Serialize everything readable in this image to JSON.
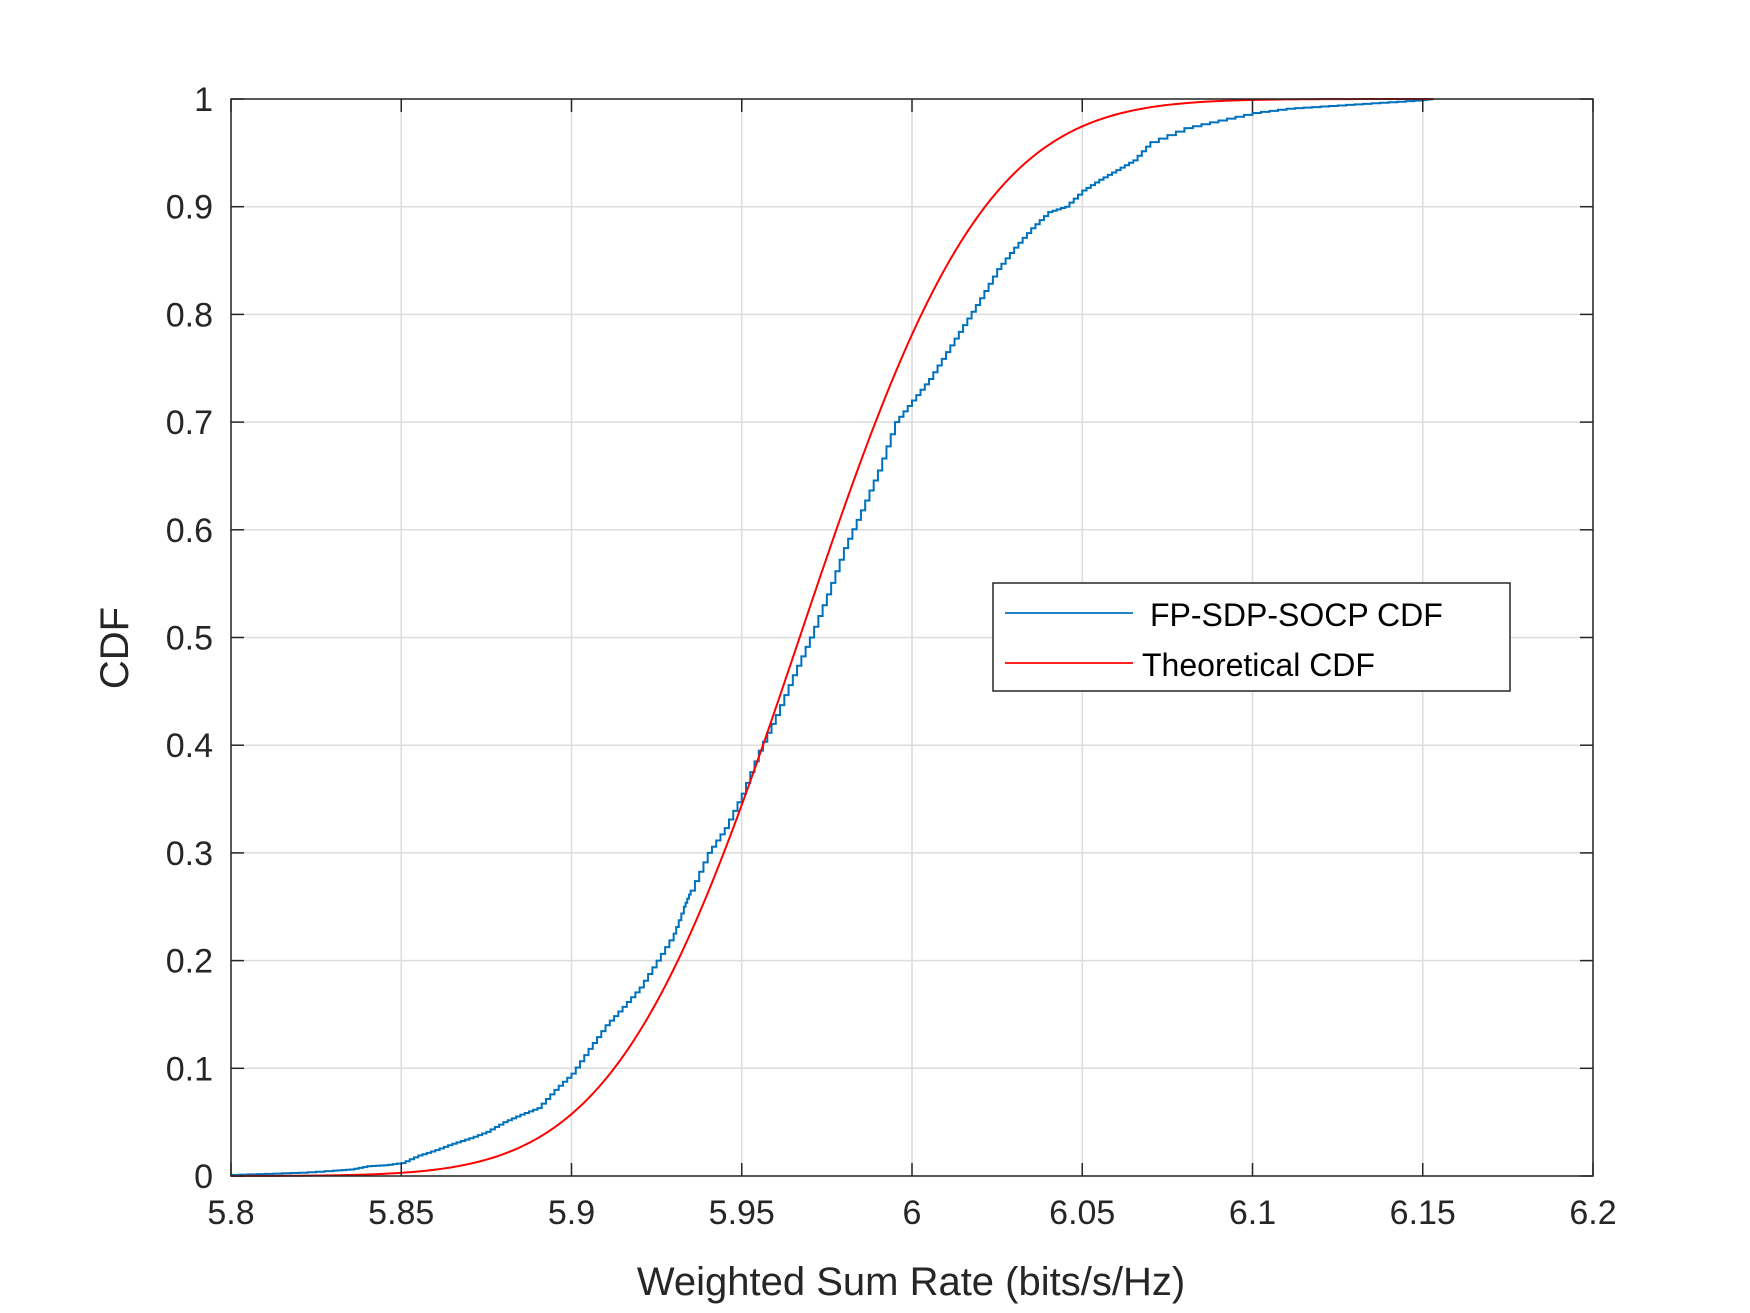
{
  "chart_data": {
    "type": "line",
    "title": "",
    "xlabel": "Weighted Sum Rate (bits/s/Hz)",
    "ylabel": "CDF",
    "xlim": [
      5.8,
      6.2
    ],
    "ylim": [
      0,
      1
    ],
    "xticks": [
      5.8,
      5.85,
      5.9,
      5.95,
      6.0,
      6.05,
      6.1,
      6.15,
      6.2
    ],
    "xtick_labels": [
      "5.8",
      "5.85",
      "5.9",
      "5.95",
      "6",
      "6.05",
      "6.1",
      "6.15",
      "6.2"
    ],
    "yticks": [
      0,
      0.1,
      0.2,
      0.3,
      0.4,
      0.5,
      0.6,
      0.7,
      0.8,
      0.9,
      1.0
    ],
    "ytick_labels": [
      "0",
      "0.1",
      "0.2",
      "0.3",
      "0.4",
      "0.5",
      "0.6",
      "0.7",
      "0.8",
      "0.9",
      "1"
    ],
    "grid": true,
    "legend_position": "center-right",
    "series": [
      {
        "name": "FP-SDP-SOCP CDF",
        "color": "#0072BD",
        "style": "empirical-stairs",
        "x": [
          5.8,
          5.81,
          5.82,
          5.83,
          5.835,
          5.84,
          5.845,
          5.85,
          5.855,
          5.86,
          5.865,
          5.87,
          5.875,
          5.88,
          5.885,
          5.89,
          5.895,
          5.9,
          5.905,
          5.91,
          5.915,
          5.92,
          5.925,
          5.93,
          5.933,
          5.935,
          5.94,
          5.945,
          5.95,
          5.955,
          5.96,
          5.965,
          5.97,
          5.975,
          5.98,
          5.985,
          5.99,
          5.995,
          6.0,
          6.005,
          6.01,
          6.015,
          6.02,
          6.025,
          6.03,
          6.035,
          6.04,
          6.045,
          6.05,
          6.055,
          6.06,
          6.065,
          6.07,
          6.08,
          6.09,
          6.1,
          6.11,
          6.12,
          6.13,
          6.14,
          6.15,
          6.153
        ],
        "y": [
          0.001,
          0.002,
          0.003,
          0.005,
          0.006,
          0.009,
          0.01,
          0.012,
          0.019,
          0.024,
          0.03,
          0.035,
          0.041,
          0.05,
          0.057,
          0.063,
          0.08,
          0.095,
          0.118,
          0.14,
          0.157,
          0.175,
          0.2,
          0.225,
          0.25,
          0.265,
          0.3,
          0.323,
          0.355,
          0.395,
          0.428,
          0.465,
          0.5,
          0.54,
          0.583,
          0.618,
          0.655,
          0.7,
          0.72,
          0.74,
          0.765,
          0.79,
          0.815,
          0.842,
          0.862,
          0.88,
          0.895,
          0.9,
          0.915,
          0.925,
          0.934,
          0.943,
          0.96,
          0.973,
          0.98,
          0.987,
          0.991,
          0.993,
          0.995,
          0.997,
          0.999,
          1.0
        ]
      },
      {
        "name": "Theoretical CDF",
        "color": "#FF0000",
        "style": "smooth",
        "distribution": "normal",
        "mean": 5.967,
        "std": 0.0425,
        "x_range": [
          5.8,
          6.153
        ]
      }
    ]
  }
}
